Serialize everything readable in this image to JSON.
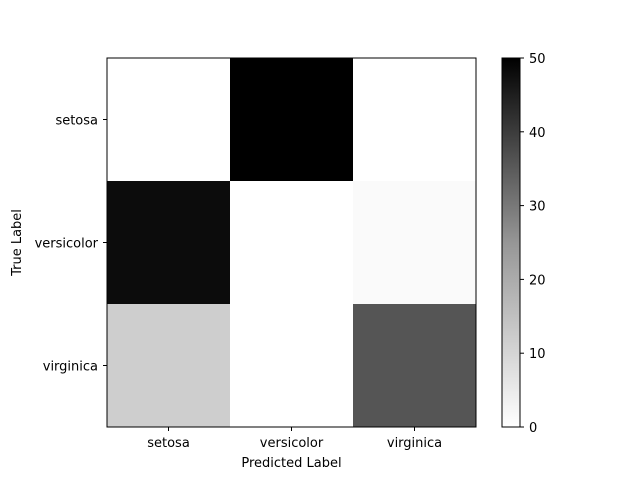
{
  "chart_data": {
    "type": "heatmap",
    "title": "",
    "xlabel": "Predicted Label",
    "ylabel": "True Label",
    "x_categories": [
      "setosa",
      "versicolor",
      "virginica"
    ],
    "y_categories": [
      "setosa",
      "versicolor",
      "virginica"
    ],
    "values": [
      [
        0,
        50,
        0
      ],
      [
        48,
        0,
        2
      ],
      [
        15,
        0,
        37
      ]
    ],
    "colormap": "Greys",
    "color_range": [
      0,
      50
    ],
    "colorbar_ticks": [
      0,
      10,
      20,
      30,
      40,
      50
    ],
    "grid": false,
    "legend": "colorbar-right"
  }
}
